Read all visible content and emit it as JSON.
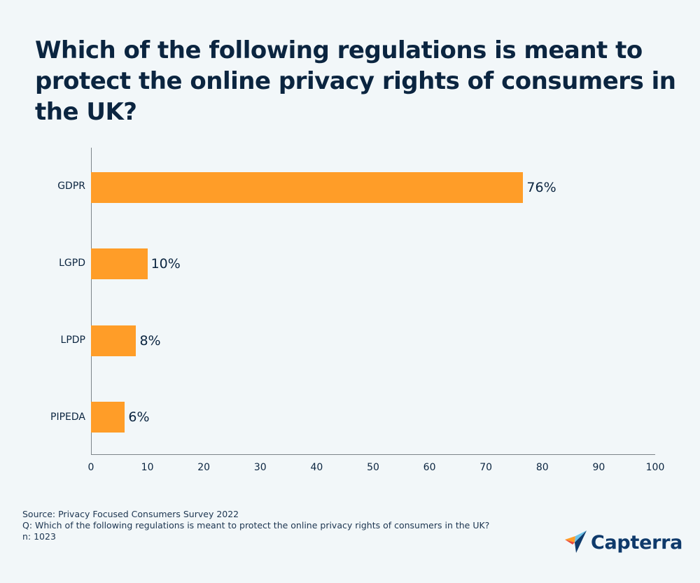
{
  "title": "Which of the following regulations is meant to protect the online privacy rights of consumers in the UK?",
  "footer": {
    "source": "Source: Privacy Focused Consumers Survey 2022",
    "question": "Q: Which of the following regulations is meant to protect the online privacy rights of consumers in the UK?",
    "n": "n: 1023"
  },
  "logo": {
    "text": "Capterra",
    "icon": "capterra-arrow-icon"
  },
  "colors": {
    "bar": "#ff9d28",
    "text": "#0b2540",
    "background": "#f2f7f9",
    "axis": "#7d8589"
  },
  "chart_data": {
    "type": "bar",
    "orientation": "horizontal",
    "title": "Which of the following regulations is meant to protect the online privacy rights of consumers in the UK?",
    "categories": [
      "GDPR",
      "LGPD",
      "LPDP",
      "PIPEDA"
    ],
    "values": [
      76,
      10,
      8,
      6
    ],
    "value_labels": [
      "76%",
      "10%",
      "8%",
      "6%"
    ],
    "xlabel": "",
    "ylabel": "",
    "xlim": [
      0,
      100
    ],
    "xticks": [
      "0",
      "10",
      "20",
      "30",
      "40",
      "50",
      "60",
      "70",
      "80",
      "90",
      "100"
    ],
    "grid": false,
    "legend": null
  }
}
